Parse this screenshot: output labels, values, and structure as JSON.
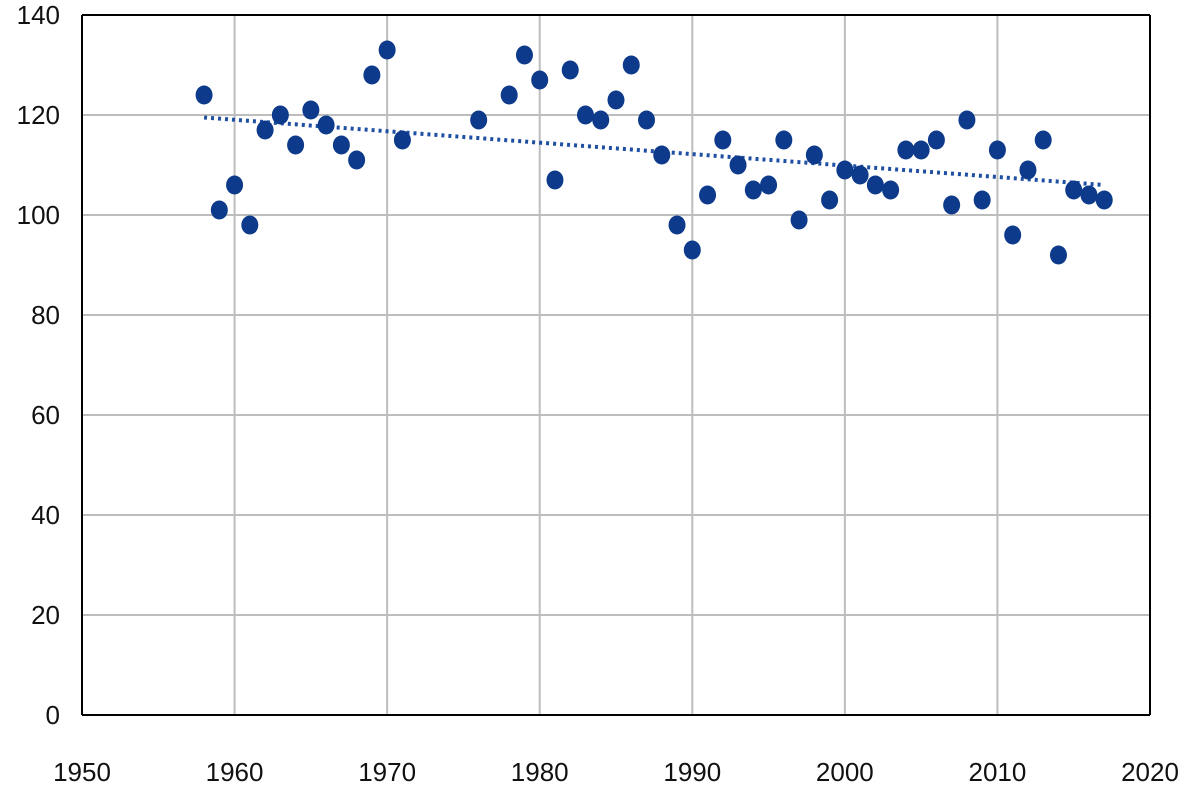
{
  "chart_data": {
    "type": "scatter",
    "title": "",
    "xlabel": "",
    "ylabel": "",
    "xlim": [
      1950,
      2020
    ],
    "ylim": [
      0,
      140
    ],
    "x_ticks": [
      1950,
      1960,
      1970,
      1980,
      1990,
      2000,
      2010,
      2020
    ],
    "y_ticks": [
      0,
      20,
      40,
      60,
      80,
      100,
      120,
      140
    ],
    "grid": true,
    "legend": "none",
    "colors": {
      "points": "#0d3a8a",
      "trend": "#1f4fa3",
      "grid": "#bdbdbd",
      "axis": "#000000"
    },
    "series": [
      {
        "x": [
          1958,
          1959,
          1960,
          1961,
          1962,
          1963,
          1964,
          1965,
          1966,
          1967,
          1968,
          1969,
          1970,
          1971,
          1976,
          1978,
          1979,
          1980,
          1981,
          1982,
          1983,
          1984,
          1985,
          1986,
          1987,
          1988,
          1989,
          1990,
          1991,
          1992,
          1993,
          1994,
          1995,
          1996,
          1997,
          1998,
          1999,
          2000,
          2001,
          2002,
          2003,
          2004,
          2005,
          2006,
          2007,
          2008,
          2009,
          2010,
          2011,
          2012,
          2013,
          2014,
          2015,
          2016,
          2017
        ],
        "y": [
          124,
          101,
          106,
          98,
          117,
          120,
          114,
          121,
          118,
          114,
          111,
          128,
          133,
          115,
          119,
          124,
          132,
          127,
          107,
          129,
          120,
          119,
          123,
          130,
          119,
          112,
          98,
          93,
          104,
          115,
          110,
          105,
          106,
          115,
          99,
          112,
          103,
          109,
          108,
          106,
          105,
          113,
          113,
          115,
          102,
          119,
          103,
          113,
          96,
          109,
          115,
          92,
          105,
          104,
          103
        ]
      }
    ],
    "trendline": {
      "style": "dotted",
      "x": [
        1958,
        2017
      ],
      "y": [
        119.5,
        106
      ]
    }
  }
}
